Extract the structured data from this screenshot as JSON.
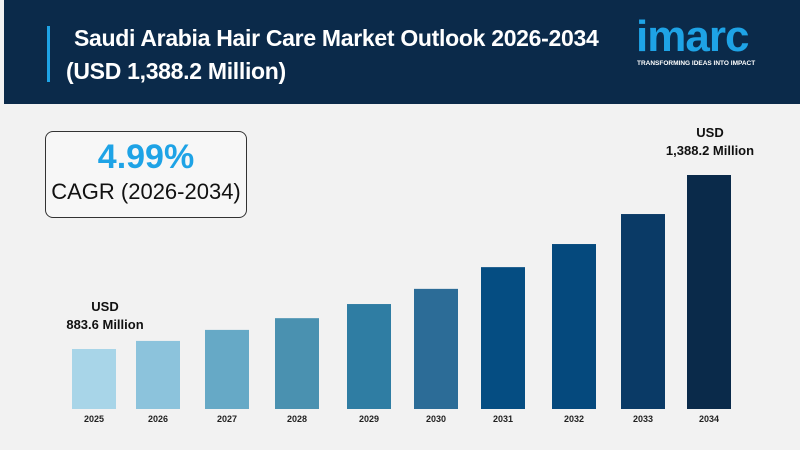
{
  "header": {
    "title_line1": "Saudi Arabia Hair Care Market Outlook 2026-2034",
    "title_line2": "(USD 1,388.2 Million)",
    "logo": "imarc",
    "tagline": "TRANSFORMING IDEAS INTO IMPACT"
  },
  "cagr": {
    "value": "4.99%",
    "label": "CAGR (2026-2034)"
  },
  "annotations": {
    "start_unit": "USD",
    "start_value": "883.6 Million",
    "end_unit": "USD",
    "end_value": "1,388.2 Million"
  },
  "chart_data": {
    "type": "bar",
    "categories": [
      "2025",
      "2026",
      "2027",
      "2028",
      "2029",
      "2030",
      "2031",
      "2032",
      "2033",
      "2034"
    ],
    "values": [
      883.6,
      907,
      939,
      973,
      1014,
      1058,
      1121,
      1188,
      1275,
      1388.2
    ],
    "colors": [
      "#a8d5e8",
      "#8cc3dc",
      "#66a9c6",
      "#4a91b0",
      "#2f7da3",
      "#2c6c97",
      "#054d82",
      "#05497d",
      "#0a3a66",
      "#0a2a4a"
    ],
    "unit": "USD Million",
    "grid": false
  }
}
